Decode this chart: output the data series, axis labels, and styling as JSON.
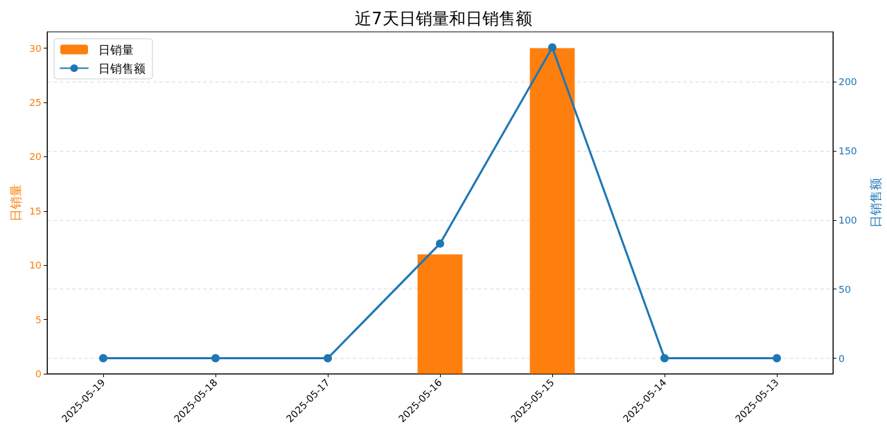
{
  "chart_data": {
    "type": "bar",
    "title": "近7天日销量和日销售额",
    "ylabel": "日销量",
    "y2label": "日销售额",
    "categories": [
      "2025-05-19",
      "2025-05-18",
      "2025-05-17",
      "2025-05-16",
      "2025-05-15",
      "2025-05-14",
      "2025-05-13"
    ],
    "series": [
      {
        "name": "日销量",
        "color": "#ff7f0e",
        "values": [
          0,
          0,
          0,
          11,
          30,
          0,
          0
        ]
      },
      {
        "name": "日销售额",
        "type": "line",
        "axis": "y2",
        "color": "#1f77b4",
        "values": [
          0,
          0,
          0,
          83,
          225,
          0,
          0
        ]
      }
    ],
    "ylim": [
      0,
      31.5
    ],
    "yticks": [
      0,
      5,
      10,
      15,
      20,
      25,
      30
    ],
    "y2lim": [
      -11.25,
      236.25
    ],
    "y2ticks": [
      0,
      50,
      100,
      150,
      200
    ],
    "grid": "y2",
    "legend": "top left",
    "marker": "circle",
    "line_style": "solid"
  }
}
